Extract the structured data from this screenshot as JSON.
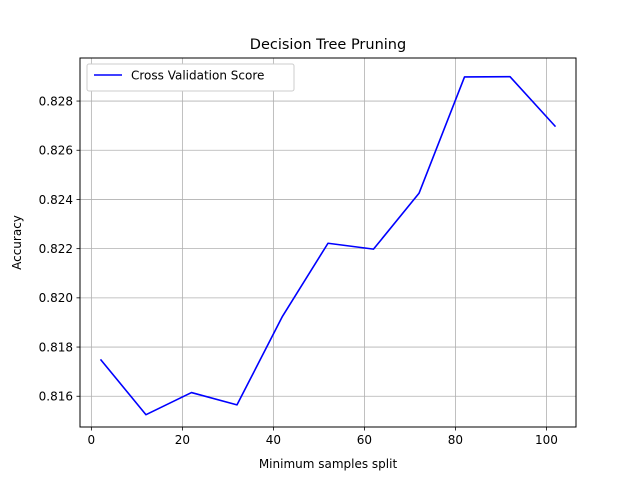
{
  "chart_data": {
    "type": "line",
    "title": "Decision Tree Pruning",
    "xlabel": "Minimum samples split",
    "ylabel": "Accuracy",
    "xlim": [
      -2.5,
      106.5
    ],
    "ylim": [
      0.81475,
      0.82975
    ],
    "xticks": [
      0,
      20,
      40,
      60,
      80,
      100
    ],
    "xtick_labels": [
      "0",
      "20",
      "40",
      "60",
      "80",
      "100"
    ],
    "yticks": [
      0.816,
      0.818,
      0.82,
      0.822,
      0.824,
      0.826,
      0.828
    ],
    "ytick_labels": [
      "0.816",
      "0.818",
      "0.820",
      "0.822",
      "0.824",
      "0.826",
      "0.828"
    ],
    "grid": true,
    "legend_position": "top-left",
    "series": [
      {
        "name": "Cross Validation Score",
        "color": "#0000ff",
        "x": [
          2,
          12,
          22,
          32,
          42,
          52,
          62,
          72,
          82,
          92,
          102
        ],
        "values": [
          0.8175,
          0.81525,
          0.81615,
          0.81565,
          0.81925,
          0.82222,
          0.82198,
          0.82425,
          0.82898,
          0.82899,
          0.82696
        ]
      }
    ]
  }
}
